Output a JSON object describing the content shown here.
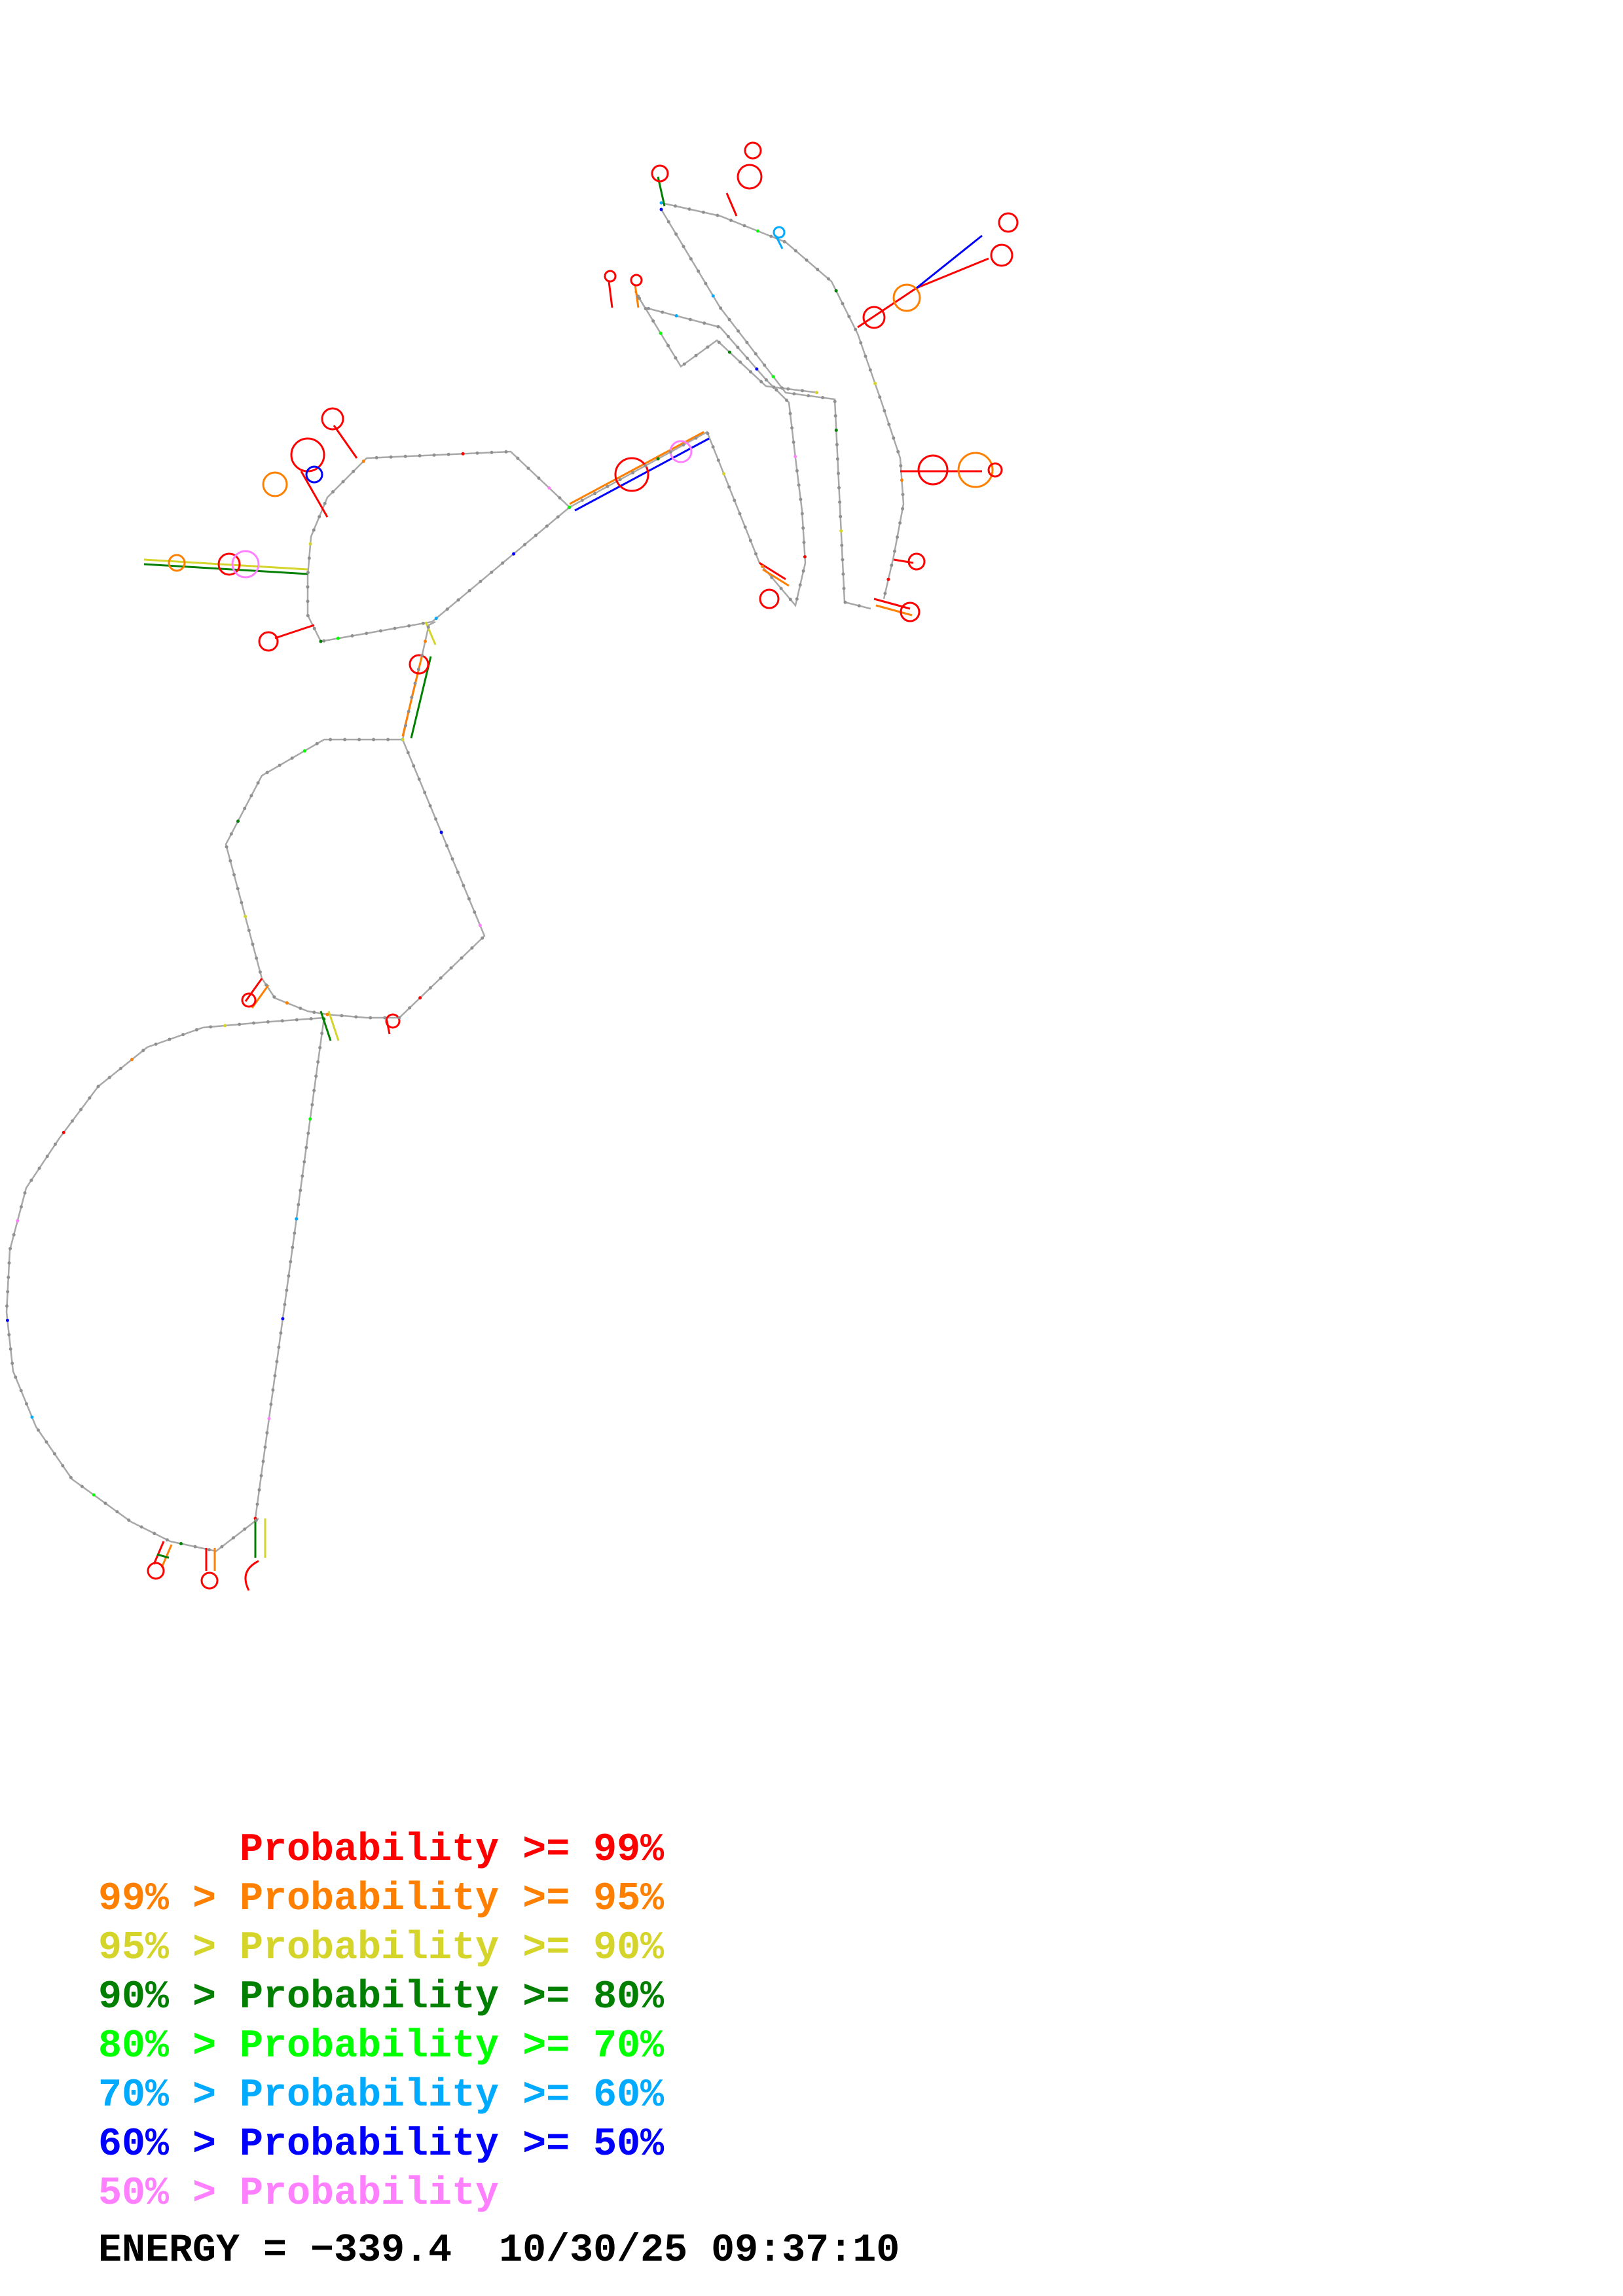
{
  "legend": [
    {
      "range": "",
      "label": "Probability >= 99%",
      "color": "#ff0000"
    },
    {
      "range": "99% > ",
      "label": "Probability >= 95%",
      "color": "#ff8000"
    },
    {
      "range": "95% > ",
      "label": "Probability >= 90%",
      "color": "#d4d42a"
    },
    {
      "range": "90% > ",
      "label": "Probability >= 80%",
      "color": "#007f00"
    },
    {
      "range": "80% > ",
      "label": "Probability >= 70%",
      "color": "#00ff00"
    },
    {
      "range": "70% > ",
      "label": "Probability >= 60%",
      "color": "#00aaff"
    },
    {
      "range": "60% > ",
      "label": "Probability >= 50%",
      "color": "#0000ff"
    },
    {
      "range": "50% > ",
      "label": "Probability",
      "color": "#ff80ff"
    }
  ],
  "footer": {
    "energy": "ENERGY = −339.4",
    "timestamp": "10/30/25 09:37:10"
  },
  "palette": {
    "backbone": "#a0a0a0",
    "base_colors": [
      "#ff0000",
      "#ff8000",
      "#d4d42a",
      "#007f00",
      "#00ff00",
      "#00aaff",
      "#0000ff",
      "#ff80ff"
    ]
  }
}
